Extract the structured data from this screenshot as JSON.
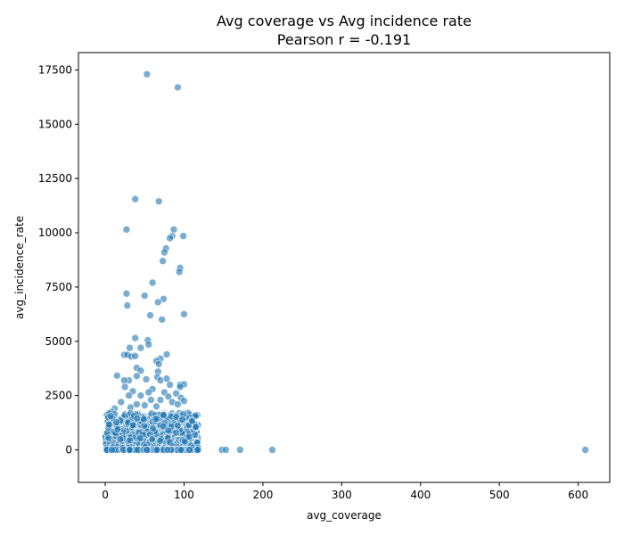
{
  "chart_data": {
    "type": "scatter",
    "title": "Avg coverage vs Avg incidence rate",
    "subtitle": "Pearson r = -0.191",
    "xlabel": "avg_coverage",
    "ylabel": "avg_incidence_rate",
    "xlim": [
      -34,
      640
    ],
    "ylim": [
      -1500,
      18300
    ],
    "xticks": [
      0,
      100,
      200,
      300,
      400,
      500,
      600
    ],
    "yticks": [
      0,
      2500,
      5000,
      7500,
      10000,
      12500,
      15000,
      17500
    ],
    "xtick_labels": [
      "0",
      "100",
      "200",
      "300",
      "400",
      "500",
      "600"
    ],
    "ytick_labels": [
      "0",
      "2500",
      "5000",
      "7500",
      "10000",
      "12500",
      "15000",
      "17500"
    ],
    "grid": false,
    "point_color": "#1f77b4",
    "cluster": {
      "x_range": [
        0,
        118
      ],
      "y_range": [
        0,
        1700
      ],
      "point_count": 700
    },
    "points": [
      [
        53,
        17300
      ],
      [
        92,
        16700
      ],
      [
        38,
        11550
      ],
      [
        68,
        11450
      ],
      [
        27,
        10150
      ],
      [
        87,
        10150
      ],
      [
        85,
        9850
      ],
      [
        99,
        9850
      ],
      [
        82,
        9750
      ],
      [
        77,
        9280
      ],
      [
        75,
        9100
      ],
      [
        73,
        8700
      ],
      [
        95,
        8380
      ],
      [
        94,
        8200
      ],
      [
        60,
        7700
      ],
      [
        27,
        7200
      ],
      [
        50,
        7100
      ],
      [
        74,
        6950
      ],
      [
        67,
        6800
      ],
      [
        28,
        6650
      ],
      [
        100,
        6250
      ],
      [
        57,
        6200
      ],
      [
        72,
        6000
      ],
      [
        38,
        5150
      ],
      [
        54,
        5050
      ],
      [
        55,
        4850
      ],
      [
        31,
        4700
      ],
      [
        45,
        4700
      ],
      [
        24,
        4380
      ],
      [
        28,
        4380
      ],
      [
        33,
        4300
      ],
      [
        38,
        4320
      ],
      [
        78,
        4400
      ],
      [
        70,
        4200
      ],
      [
        65,
        4100
      ],
      [
        68,
        3950
      ],
      [
        40,
        3780
      ],
      [
        45,
        3650
      ],
      [
        67,
        3600
      ],
      [
        40,
        3400
      ],
      [
        15,
        3420
      ],
      [
        66,
        3350
      ],
      [
        70,
        3200
      ],
      [
        78,
        3280
      ],
      [
        30,
        3200
      ],
      [
        24,
        3200
      ],
      [
        52,
        3250
      ],
      [
        95,
        3000
      ],
      [
        100,
        3020
      ],
      [
        82,
        3000
      ],
      [
        95,
        2900
      ],
      [
        25,
        2900
      ],
      [
        60,
        2800
      ],
      [
        35,
        2700
      ],
      [
        55,
        2650
      ],
      [
        75,
        2650
      ],
      [
        90,
        2600
      ],
      [
        45,
        2500
      ],
      [
        30,
        2500
      ],
      [
        80,
        2450
      ],
      [
        96,
        2400
      ],
      [
        58,
        2300
      ],
      [
        70,
        2300
      ],
      [
        85,
        2200
      ],
      [
        100,
        2250
      ],
      [
        20,
        2200
      ],
      [
        40,
        2100
      ],
      [
        65,
        2000
      ],
      [
        50,
        2050
      ],
      [
        92,
        2100
      ],
      [
        12,
        1900
      ],
      [
        32,
        1950
      ],
      [
        2,
        1600
      ],
      [
        8,
        1750
      ],
      [
        148,
        0
      ],
      [
        153,
        0
      ],
      [
        171,
        0
      ],
      [
        212,
        0
      ],
      [
        609,
        0
      ],
      [
        105,
        0
      ],
      [
        108,
        0
      ],
      [
        110,
        0
      ],
      [
        112,
        0
      ],
      [
        115,
        0
      ],
      [
        118,
        0
      ]
    ]
  }
}
